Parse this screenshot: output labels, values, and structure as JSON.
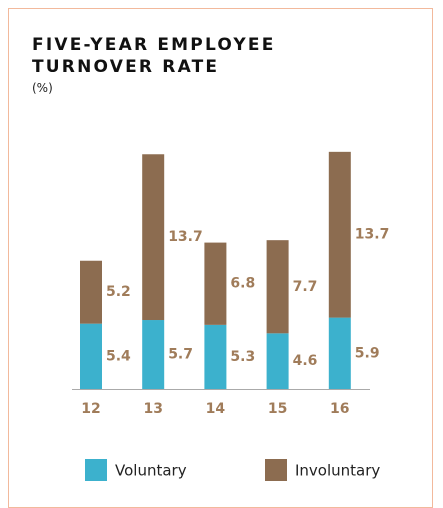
{
  "chart_data": {
    "type": "stacked_bar",
    "title": "FIVE-YEAR EMPLOYEE TURNOVER RATE",
    "subtitle": "(%)",
    "categories": [
      "12",
      "13",
      "14",
      "15",
      "16"
    ],
    "series": [
      {
        "name": "Voluntary",
        "color": "#3cb1cd",
        "values": [
          5.4,
          5.7,
          5.3,
          4.6,
          5.9
        ]
      },
      {
        "name": "Involuntary",
        "color": "#8c6c50",
        "values": [
          5.2,
          13.7,
          6.8,
          7.7,
          13.7
        ]
      }
    ]
  }
}
